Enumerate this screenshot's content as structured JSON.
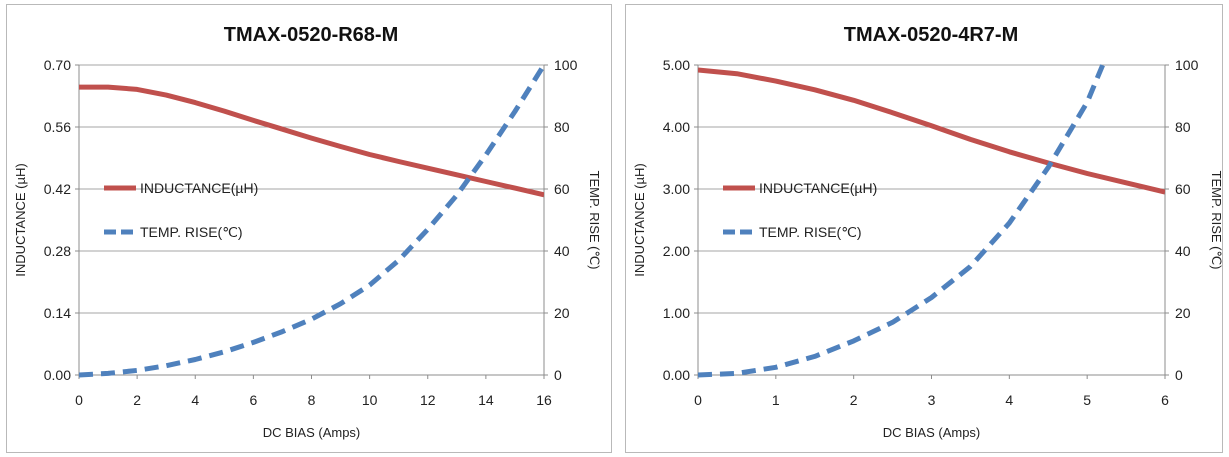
{
  "chart_data": [
    {
      "type": "line",
      "title": "TMAX-0520-R68-M",
      "xlabel": "DC BIAS (Amps)",
      "ylabel": "INDUCTANCE (µH)",
      "y2label": "TEMP. RISE (℃)",
      "xlim": [
        0,
        16
      ],
      "ylim": [
        0,
        0.7
      ],
      "y2lim": [
        0,
        100
      ],
      "x_ticks": [
        "0",
        "2",
        "4",
        "6",
        "8",
        "10",
        "12",
        "14",
        "16"
      ],
      "y_ticks": [
        "0.00",
        "0.14",
        "0.28",
        "0.42",
        "0.56",
        "0.70"
      ],
      "y2_ticks": [
        "0",
        "20",
        "40",
        "60",
        "80",
        "100"
      ],
      "grid": true,
      "legend_position": "middle-left",
      "series": [
        {
          "name": "INDUCTANCE(µH)",
          "axis": "left",
          "style": "solid",
          "color": "#c0504d",
          "x": [
            0,
            1,
            2,
            3,
            4,
            5,
            6,
            7,
            8,
            9,
            10,
            11,
            12,
            13,
            14,
            15,
            16
          ],
          "y": [
            0.65,
            0.65,
            0.645,
            0.632,
            0.615,
            0.596,
            0.575,
            0.555,
            0.535,
            0.516,
            0.498,
            0.482,
            0.467,
            0.452,
            0.437,
            0.422,
            0.407
          ]
        },
        {
          "name": "TEMP. RISE(℃)",
          "axis": "right",
          "style": "dashed",
          "color": "#4f81bd",
          "x": [
            0,
            1,
            2,
            3,
            4,
            5,
            6,
            7,
            8,
            9,
            10,
            11,
            12,
            13,
            14,
            15,
            16
          ],
          "y": [
            0,
            0.5,
            1.5,
            3,
            5,
            7.5,
            10.5,
            14,
            18,
            23,
            29,
            37,
            47,
            58,
            71,
            85,
            100
          ]
        }
      ]
    },
    {
      "type": "line",
      "title": "TMAX-0520-4R7-M",
      "xlabel": "DC BIAS (Amps)",
      "ylabel": "INDUCTANCE (µH)",
      "y2label": "TEMP. RISE (℃)",
      "xlim": [
        0,
        6
      ],
      "ylim": [
        0,
        5.0
      ],
      "y2lim": [
        0,
        100
      ],
      "x_ticks": [
        "0",
        "1",
        "2",
        "3",
        "4",
        "5",
        "6"
      ],
      "y_ticks": [
        "0.00",
        "1.00",
        "2.00",
        "3.00",
        "4.00",
        "5.00"
      ],
      "y2_ticks": [
        "0",
        "20",
        "40",
        "60",
        "80",
        "100"
      ],
      "grid": true,
      "legend_position": "middle-left",
      "series": [
        {
          "name": "INDUCTANCE(µH)",
          "axis": "left",
          "style": "solid",
          "color": "#c0504d",
          "x": [
            0,
            0.5,
            1,
            1.5,
            2,
            2.5,
            3,
            3.5,
            4,
            4.5,
            5,
            5.5,
            6
          ],
          "y": [
            4.92,
            4.86,
            4.74,
            4.6,
            4.43,
            4.23,
            4.02,
            3.8,
            3.6,
            3.42,
            3.25,
            3.1,
            2.95
          ]
        },
        {
          "name": "TEMP. RISE(℃)",
          "axis": "right",
          "style": "dashed",
          "color": "#4f81bd",
          "x": [
            0,
            0.5,
            1,
            1.5,
            2,
            2.5,
            3,
            3.5,
            4,
            4.5,
            5,
            5.2
          ],
          "y": [
            0,
            0.5,
            2.5,
            6,
            11,
            17,
            25,
            35,
            49,
            67,
            88,
            100
          ]
        }
      ]
    }
  ]
}
